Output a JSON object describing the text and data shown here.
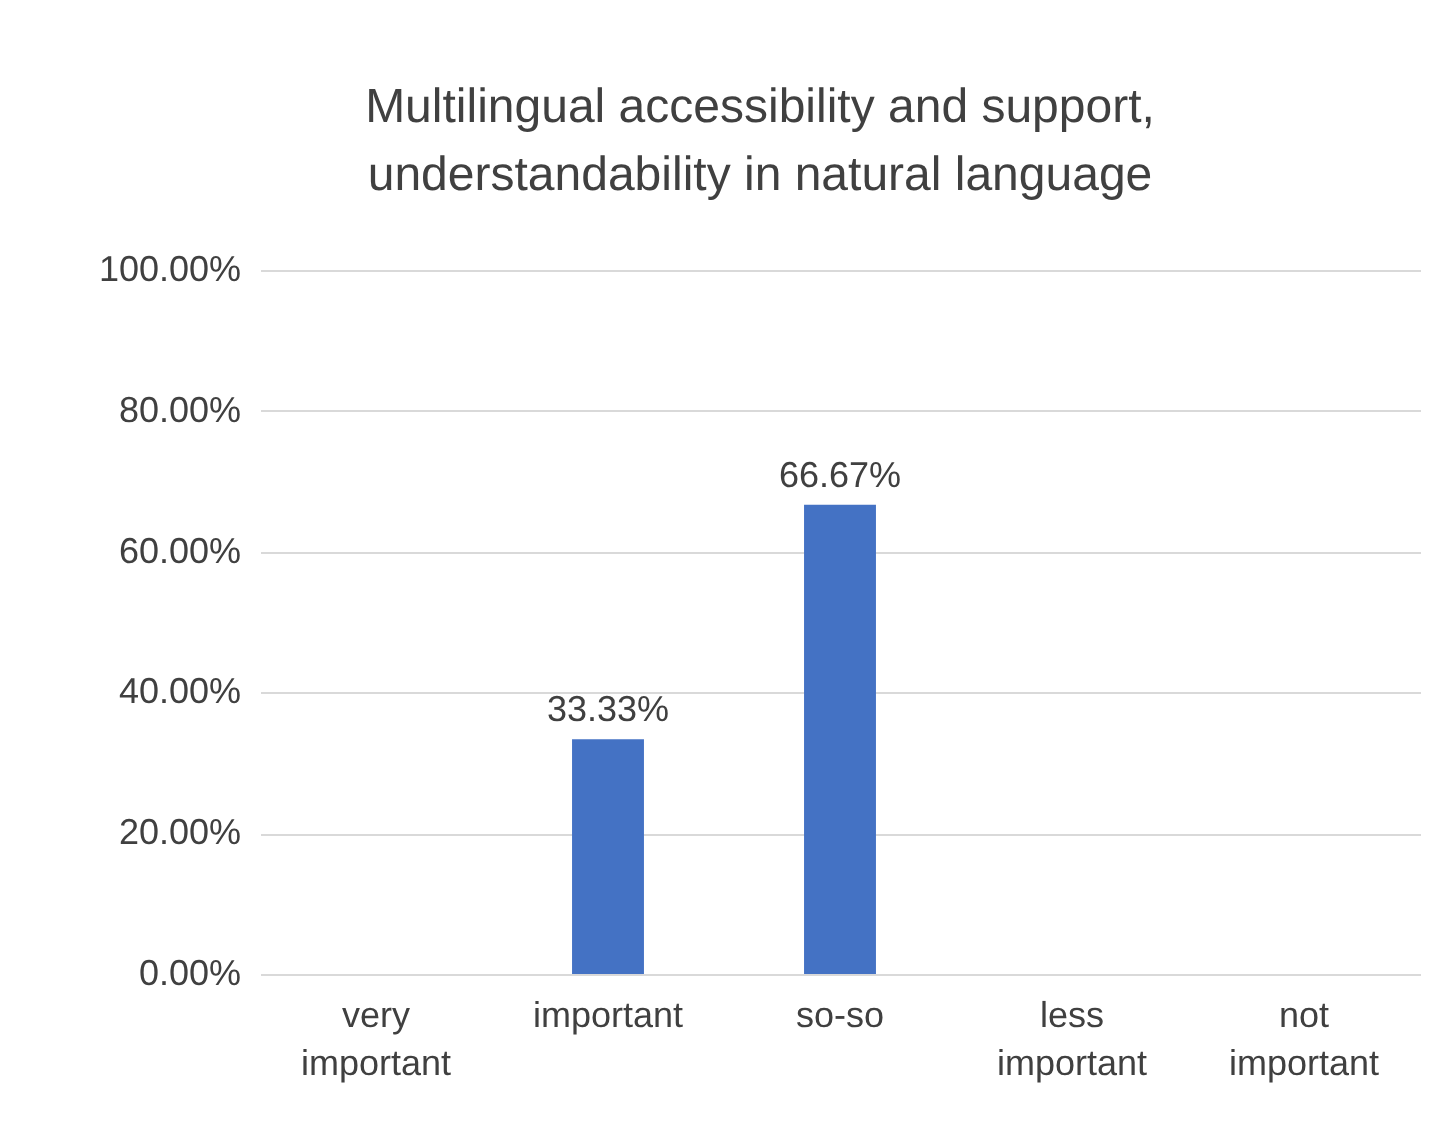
{
  "chart_data": {
    "type": "bar",
    "title": "Multilingual accessibility and support, understandability in natural language",
    "categories": [
      "very important",
      "important",
      "so-so",
      "less important",
      "not important"
    ],
    "values": [
      0,
      33.33,
      66.67,
      0,
      0
    ],
    "value_labels": [
      null,
      "33.33%",
      "66.67%",
      null,
      null
    ],
    "color": "#4472c4",
    "ylim": [
      0,
      100
    ],
    "yticks": [
      {
        "value": 0,
        "label": "0.00%"
      },
      {
        "value": 20,
        "label": "20.00%"
      },
      {
        "value": 40,
        "label": "40.00%"
      },
      {
        "value": 60,
        "label": "60.00%"
      },
      {
        "value": 80,
        "label": "80.00%"
      },
      {
        "value": 100,
        "label": "100.00%"
      }
    ],
    "grid": true
  }
}
